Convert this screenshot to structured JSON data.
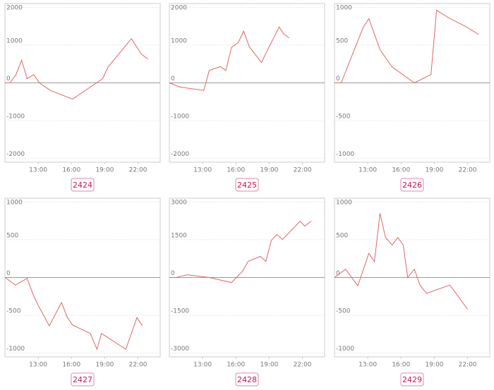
{
  "chart_data": [
    {
      "type": "line",
      "label": "2424",
      "color": "#e06666",
      "grid": true,
      "x": [
        10,
        10.45,
        11.0,
        11.5,
        12.0,
        12.6,
        13.1,
        14.1,
        16.1,
        18.8,
        19.3,
        21.4,
        22.3,
        22.9
      ],
      "values": [
        0,
        0,
        220,
        600,
        110,
        220,
        0,
        -200,
        -430,
        110,
        420,
        1170,
        760,
        630
      ],
      "xlim": [
        10,
        24
      ],
      "ylim": [
        -2100,
        2100
      ],
      "xticks": [
        {
          "value": 13,
          "label": "13:00"
        },
        {
          "value": 16,
          "label": "16:00"
        },
        {
          "value": 19,
          "label": "19:00"
        },
        {
          "value": 22,
          "label": "22:00"
        }
      ],
      "yticks": [
        2000,
        1000,
        0,
        -1000,
        -2000
      ]
    },
    {
      "type": "line",
      "label": "2425",
      "color": "#e06666",
      "grid": true,
      "x": [
        10.0,
        10.95,
        13.1,
        13.6,
        14.6,
        15.1,
        15.6,
        16.2,
        16.7,
        17.2,
        18.3,
        19.3,
        19.9,
        20.3,
        20.8
      ],
      "values": [
        0,
        -110,
        -200,
        330,
        430,
        330,
        940,
        1060,
        1370,
        960,
        540,
        1130,
        1480,
        1300,
        1190
      ],
      "xlim": [
        10,
        24
      ],
      "ylim": [
        -2100,
        2100
      ],
      "xticks": [
        {
          "value": 13,
          "label": "13:00"
        },
        {
          "value": 16,
          "label": "16:00"
        },
        {
          "value": 19,
          "label": "19:00"
        },
        {
          "value": 22,
          "label": "22:00"
        }
      ],
      "yticks": [
        2000,
        1000,
        0,
        -1000,
        -2000
      ]
    },
    {
      "type": "line",
      "label": "2426",
      "color": "#e06666",
      "grid": true,
      "x": [
        10.0,
        10.6,
        12.6,
        13.1,
        14.1,
        15.2,
        17.2,
        18.7,
        19.2,
        20.3,
        21.9,
        23.0
      ],
      "values": [
        0,
        0,
        740,
        850,
        440,
        210,
        0,
        110,
        960,
        860,
        740,
        640
      ],
      "xlim": [
        10,
        24
      ],
      "ylim": [
        -1050,
        1050
      ],
      "xticks": [
        {
          "value": 13,
          "label": "13:00"
        },
        {
          "value": 16,
          "label": "16:00"
        },
        {
          "value": 19,
          "label": "19:00"
        },
        {
          "value": 22,
          "label": "22:00"
        }
      ],
      "yticks": [
        1000,
        500,
        0,
        -500,
        -1000
      ]
    },
    {
      "type": "line",
      "label": "2427",
      "color": "#e06666",
      "grid": true,
      "x": [
        10,
        10.96,
        12.0,
        12.5,
        13.0,
        13.6,
        14.0,
        15.1,
        15.6,
        16.1,
        17.7,
        18.3,
        18.7,
        20.9,
        21.9,
        22.4
      ],
      "values": [
        0,
        -100,
        -10,
        -210,
        -370,
        -530,
        -640,
        -330,
        -520,
        -630,
        -740,
        -950,
        -740,
        -950,
        -530,
        -640
      ],
      "xlim": [
        10,
        24
      ],
      "ylim": [
        -1050,
        1050
      ],
      "xticks": [
        {
          "value": 13,
          "label": "13:00"
        },
        {
          "value": 16,
          "label": "16:00"
        },
        {
          "value": 19,
          "label": "19:00"
        },
        {
          "value": 22,
          "label": "22:00"
        }
      ],
      "yticks": [
        1000,
        500,
        0,
        -500,
        -1000
      ]
    },
    {
      "type": "line",
      "label": "2428",
      "color": "#e06666",
      "grid": true,
      "x": [
        10.0,
        10.6,
        11.6,
        13.6,
        15.6,
        16.6,
        17.1,
        18.2,
        18.7,
        19.2,
        19.7,
        20.2,
        21.8,
        22.2,
        22.8
      ],
      "values": [
        0,
        0,
        110,
        0,
        -200,
        250,
        640,
        840,
        640,
        1480,
        1710,
        1510,
        2240,
        2040,
        2240
      ],
      "xlim": [
        10,
        24
      ],
      "ylim": [
        -3150,
        3150
      ],
      "xticks": [
        {
          "value": 13,
          "label": "13:00"
        },
        {
          "value": 16,
          "label": "16:00"
        },
        {
          "value": 19,
          "label": "19:00"
        },
        {
          "value": 22,
          "label": "22:00"
        }
      ],
      "yticks": [
        3000,
        1500,
        0,
        -1500,
        -3000
      ]
    },
    {
      "type": "line",
      "label": "2429",
      "color": "#e06666",
      "grid": true,
      "x": [
        10.0,
        11.0,
        12.1,
        13.1,
        13.6,
        14.1,
        14.6,
        15.2,
        15.7,
        16.2,
        16.6,
        17.2,
        17.7,
        18.3,
        20.4,
        22.0
      ],
      "values": [
        0,
        110,
        -110,
        320,
        210,
        850,
        530,
        430,
        530,
        430,
        0,
        110,
        -100,
        -210,
        -100,
        -420
      ],
      "xlim": [
        10,
        24
      ],
      "ylim": [
        -1050,
        1050
      ],
      "xticks": [
        {
          "value": 13,
          "label": "13:00"
        },
        {
          "value": 16,
          "label": "16:00"
        },
        {
          "value": 19,
          "label": "19:00"
        },
        {
          "value": 22,
          "label": "22:00"
        }
      ],
      "yticks": [
        1000,
        500,
        0,
        -500,
        -1000
      ]
    }
  ]
}
